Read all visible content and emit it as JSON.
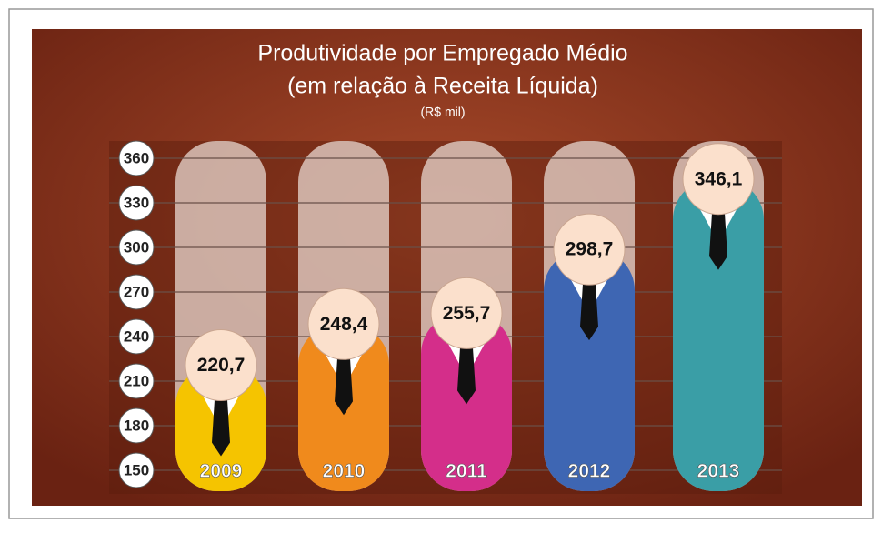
{
  "chart_data": {
    "type": "bar",
    "title": "Produtividade por Empregado Médio",
    "subtitle": "(em relação à Receita Líquida)",
    "unit": "(R$ mil)",
    "categories": [
      "2009",
      "2010",
      "2011",
      "2012",
      "2013"
    ],
    "values": [
      220.7,
      248.4,
      255.7,
      298.7,
      346.1
    ],
    "value_labels": [
      "220,7",
      "248,4",
      "255,7",
      "298,7",
      "346,1"
    ],
    "colors": [
      "#f5c400",
      "#f08a1c",
      "#d42e8a",
      "#3e66b3",
      "#3a9ea6"
    ],
    "ylim": [
      150,
      360
    ],
    "yticks": [
      150,
      180,
      210,
      240,
      270,
      300,
      330,
      360
    ],
    "grid": true
  }
}
